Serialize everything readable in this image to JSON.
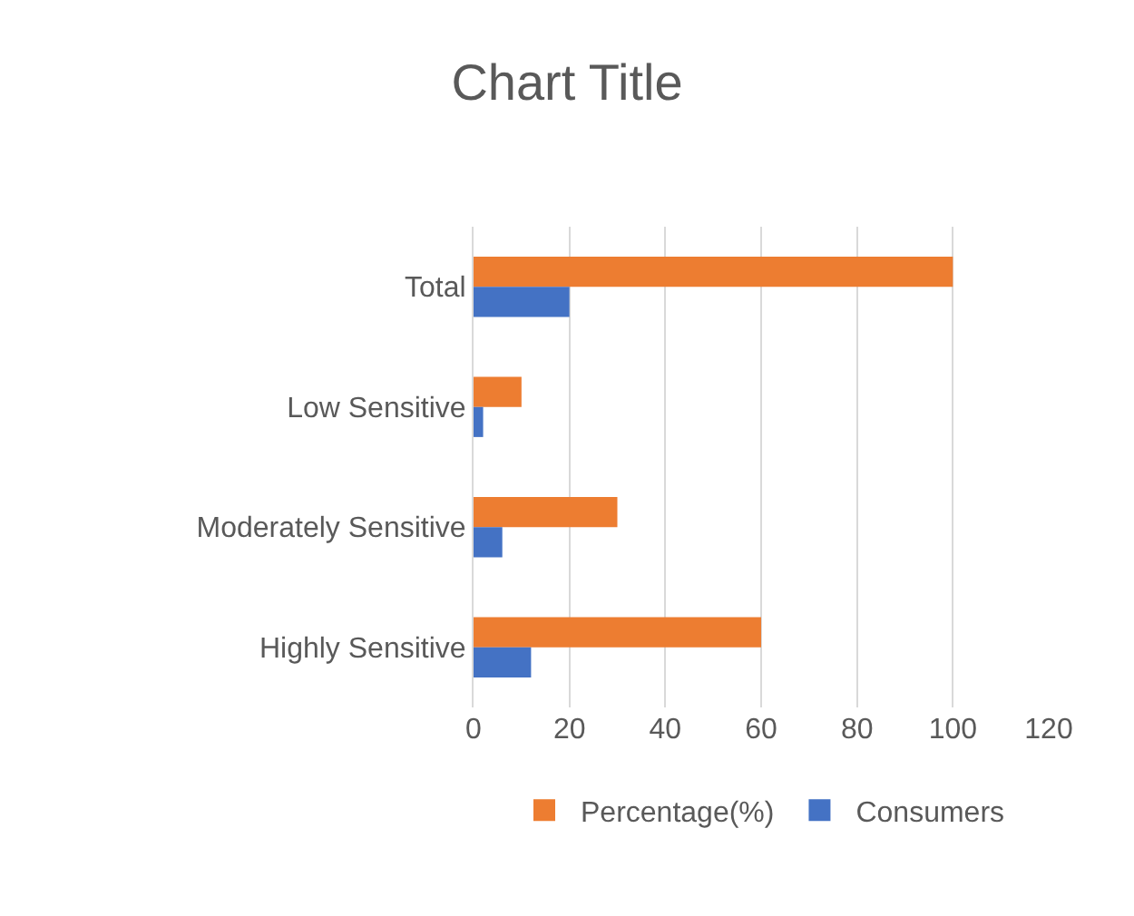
{
  "chart_data": {
    "type": "bar",
    "orientation": "horizontal",
    "title": "Chart Title",
    "categories": [
      "Total",
      "Low Sensitive",
      "Moderately Sensitive",
      "Highly Sensitive"
    ],
    "series": [
      {
        "name": "Percentage(%)",
        "color": "#ed7d31",
        "values": [
          100,
          10,
          30,
          60
        ]
      },
      {
        "name": "Consumers",
        "color": "#4472c4",
        "values": [
          20,
          2,
          6,
          12
        ]
      }
    ],
    "xlim": [
      0,
      120
    ],
    "xticks": [
      0,
      20,
      40,
      60,
      80,
      100,
      120
    ],
    "grid": "x",
    "legend": "bottom"
  }
}
